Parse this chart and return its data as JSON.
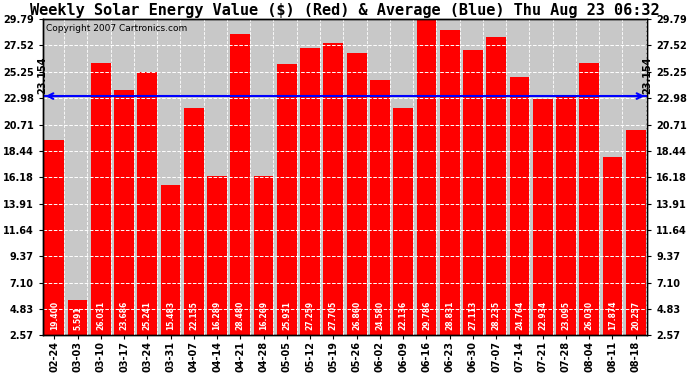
{
  "title": "Weekly Solar Energy Value ($) (Red) & Average (Blue) Thu Aug 23 06:32",
  "copyright": "Copyright 2007 Cartronics.com",
  "average": 23.154,
  "categories": [
    "02-24",
    "03-03",
    "03-10",
    "03-17",
    "03-24",
    "03-31",
    "04-07",
    "04-14",
    "04-21",
    "04-28",
    "05-05",
    "05-12",
    "05-19",
    "05-26",
    "06-02",
    "06-09",
    "06-16",
    "06-23",
    "06-30",
    "07-07",
    "07-14",
    "07-21",
    "07-28",
    "08-04",
    "08-11",
    "08-18"
  ],
  "values": [
    19.4,
    5.591,
    26.031,
    23.686,
    25.241,
    15.483,
    22.155,
    16.289,
    28.48,
    16.269,
    25.931,
    27.259,
    27.705,
    26.86,
    24.58,
    22.136,
    29.786,
    28.831,
    27.113,
    28.235,
    24.764,
    22.934,
    23.095,
    26.03,
    17.874,
    20.257
  ],
  "bar_color": "#FF0000",
  "avg_line_color": "#0000FF",
  "background_color": "#FFFFFF",
  "plot_bg_color": "#C8C8C8",
  "grid_color": "#FFFFFF",
  "yticks": [
    2.57,
    4.83,
    7.1,
    9.37,
    11.64,
    13.91,
    16.18,
    18.44,
    20.71,
    22.98,
    25.25,
    27.52,
    29.79
  ],
  "ymin": 2.57,
  "ymax": 29.79,
  "avg_label": "23.154",
  "title_fontsize": 11,
  "tick_fontsize": 7,
  "value_fontsize": 5.5,
  "copyright_fontsize": 6.5
}
